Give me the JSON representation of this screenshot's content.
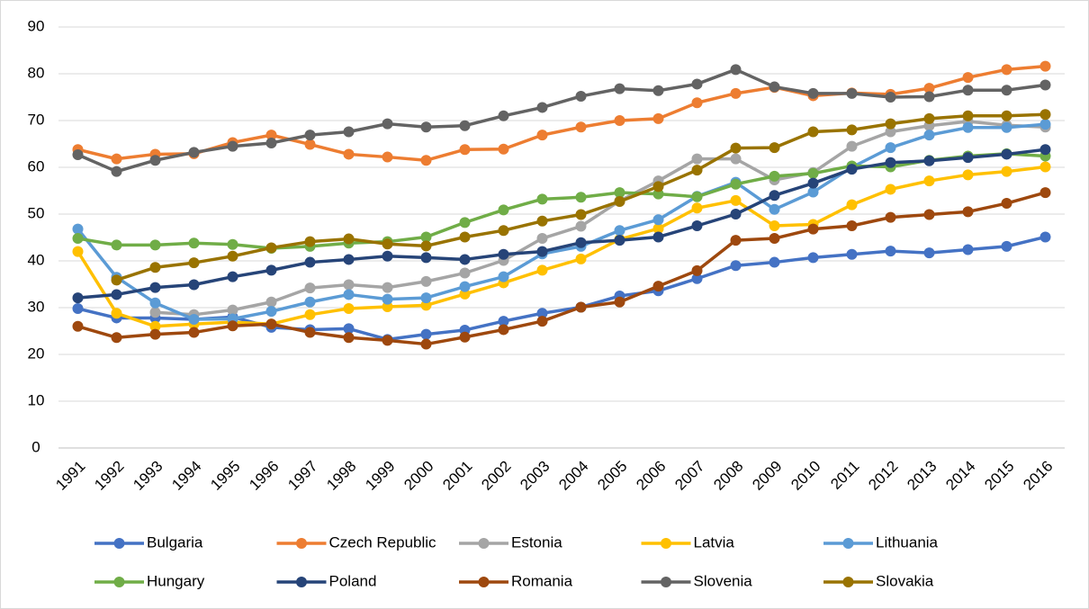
{
  "chart_data": {
    "type": "line",
    "categories": [
      "1991",
      "1992",
      "1993",
      "1994",
      "1995",
      "1996",
      "1997",
      "1998",
      "1999",
      "2000",
      "2001",
      "2002",
      "2003",
      "2004",
      "2005",
      "2006",
      "2007",
      "2008",
      "2009",
      "2010",
      "2011",
      "2012",
      "2013",
      "2014",
      "2015",
      "2016"
    ],
    "ylim": [
      0,
      90
    ],
    "yticks": [
      0,
      10,
      20,
      30,
      40,
      50,
      60,
      70,
      80,
      90
    ],
    "grid": true,
    "series": [
      {
        "name": "Bulgaria",
        "color": "#4472c4",
        "values": [
          29.8,
          27.8,
          27.8,
          27.5,
          28,
          25.8,
          25.3,
          25.5,
          23.2,
          24.3,
          25.2,
          27.1,
          28.8,
          30.1,
          32.5,
          33.6,
          36.2,
          39,
          39.7,
          40.7,
          41.4,
          42.1,
          41.7,
          42.4,
          43.1,
          45.1
        ]
      },
      {
        "name": "Czech Republic",
        "color": "#ed7d31",
        "values": [
          63.8,
          61.8,
          62.8,
          62.9,
          65.3,
          66.9,
          64.9,
          62.8,
          62.2,
          61.5,
          63.8,
          63.9,
          66.9,
          68.6,
          70,
          70.4,
          73.8,
          75.8,
          77.1,
          75.3,
          75.9,
          75.6,
          76.9,
          79.2,
          80.9,
          81.6
        ]
      },
      {
        "name": "Estonia",
        "color": "#a5a5a5",
        "values": [
          null,
          null,
          29,
          28.5,
          29.5,
          31.2,
          34.2,
          34.9,
          34.3,
          35.6,
          37.4,
          40.1,
          44.8,
          47.4,
          52.8,
          57.1,
          61.8,
          61.8,
          57.3,
          58.9,
          64.5,
          67.6,
          68.9,
          69.8,
          69,
          68.6
        ]
      },
      {
        "name": "Latvia",
        "color": "#ffc000",
        "values": [
          42,
          28.8,
          26,
          26.5,
          26.9,
          26.5,
          28.5,
          29.8,
          30.2,
          30.5,
          32.9,
          35.3,
          38,
          40.4,
          44.6,
          46.9,
          51.3,
          52.9,
          47.5,
          47.8,
          52,
          55.3,
          57.1,
          58.4,
          59.1,
          60.1
        ]
      },
      {
        "name": "Lithuania",
        "color": "#5b9bd5",
        "values": [
          46.8,
          36.5,
          31,
          27.5,
          27.6,
          29.2,
          31.2,
          32.8,
          31.8,
          32.1,
          34.5,
          36.6,
          41.5,
          43.1,
          46.5,
          48.8,
          53.8,
          56.8,
          51,
          54.7,
          60,
          64.2,
          66.9,
          68.5,
          68.5,
          69.2
        ]
      },
      {
        "name": "Hungary",
        "color": "#70ad47",
        "values": [
          44.8,
          43.4,
          43.4,
          43.8,
          43.5,
          42.7,
          43.1,
          43.8,
          44.1,
          45.1,
          48.2,
          50.9,
          53.2,
          53.6,
          54.6,
          54.3,
          53.7,
          56.4,
          58.1,
          58.7,
          60.3,
          60.1,
          61.5,
          62.4,
          62.9,
          62.4
        ]
      },
      {
        "name": "Poland",
        "color": "#264478",
        "values": [
          32.1,
          32.8,
          34.3,
          34.9,
          36.6,
          38,
          39.7,
          40.3,
          41,
          40.7,
          40.3,
          41.4,
          42,
          43.9,
          44.4,
          45.1,
          47.5,
          50,
          54,
          56.6,
          59.6,
          61,
          61.4,
          62.1,
          62.8,
          63.8
        ]
      },
      {
        "name": "Romania",
        "color": "#9e480e",
        "values": [
          26,
          23.6,
          24.3,
          24.7,
          26.1,
          26.5,
          24.7,
          23.6,
          23,
          22.2,
          23.7,
          25.3,
          27.1,
          30.1,
          31.2,
          34.6,
          37.9,
          44.4,
          44.8,
          46.8,
          47.5,
          49.3,
          49.9,
          50.5,
          52.3,
          54.6
        ]
      },
      {
        "name": "Slovenia",
        "color": "#636363",
        "values": [
          62.7,
          59.1,
          61.5,
          63.2,
          64.5,
          65.2,
          66.9,
          67.6,
          69.3,
          68.6,
          68.9,
          71,
          72.8,
          75.2,
          76.8,
          76.4,
          77.8,
          80.9,
          77.2,
          75.8,
          75.8,
          75,
          75.1,
          76.5,
          76.5,
          77.6
        ]
      },
      {
        "name": "Slovakia",
        "color": "#997300",
        "values": [
          null,
          35.9,
          38.6,
          39.6,
          41,
          42.8,
          44.1,
          44.7,
          43.6,
          43.2,
          45.1,
          46.5,
          48.5,
          49.9,
          52.7,
          55.9,
          59.4,
          64.1,
          64.2,
          67.6,
          68,
          69.3,
          70.4,
          71,
          71,
          71.3
        ]
      }
    ]
  }
}
